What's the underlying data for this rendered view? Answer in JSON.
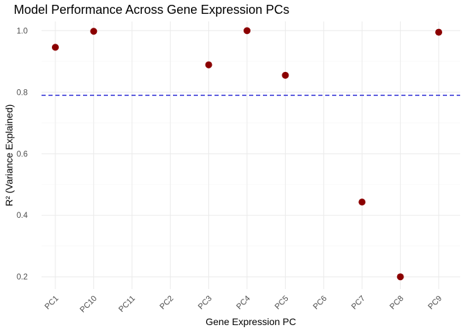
{
  "chart_data": {
    "type": "scatter",
    "title": "Model Performance Across Gene Expression PCs",
    "xlabel": "Gene Expression PC",
    "ylabel": "R² (Variance Explained)",
    "categories": [
      "PC1",
      "PC10",
      "PC11",
      "PC2",
      "PC3",
      "PC4",
      "PC5",
      "PC6",
      "PC7",
      "PC8",
      "PC9"
    ],
    "points": [
      {
        "category": "PC1",
        "value": 0.946
      },
      {
        "category": "PC10",
        "value": 0.998
      },
      {
        "category": "PC3",
        "value": 0.889
      },
      {
        "category": "PC4",
        "value": 1.0
      },
      {
        "category": "PC5",
        "value": 0.855
      },
      {
        "category": "PC7",
        "value": 0.443
      },
      {
        "category": "PC8",
        "value": 0.2
      },
      {
        "category": "PC9",
        "value": 0.995
      }
    ],
    "reference_line": {
      "value": 0.79,
      "style": "dashed",
      "color": "#0000cc"
    },
    "ylim": [
      0.16,
      1.03
    ],
    "yticks": [
      0.2,
      0.4,
      0.6,
      0.8,
      1.0
    ],
    "ytick_labels": [
      "0.2",
      "0.4",
      "0.6",
      "0.8",
      "1.0"
    ],
    "point_color": "#8b0000",
    "grid": true,
    "legend": "none"
  }
}
